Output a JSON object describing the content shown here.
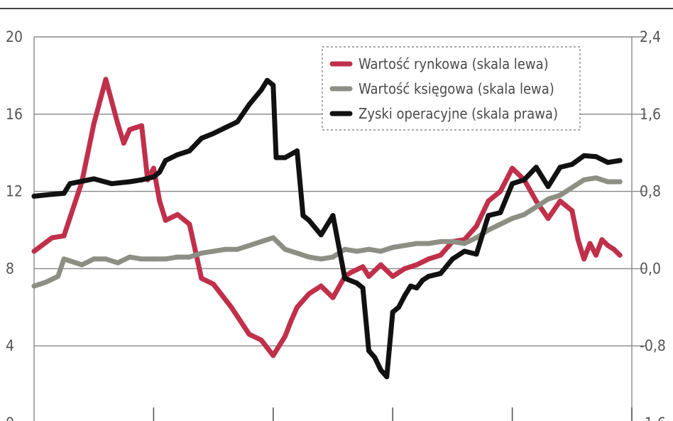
{
  "chart_data": {
    "type": "line",
    "title": "",
    "xlabel": "",
    "ylabel_left": "",
    "ylabel_right": "",
    "y_left": {
      "ticks": [
        "20",
        "16",
        "12",
        "8",
        "4",
        "0"
      ],
      "values": [
        20,
        16,
        12,
        8,
        4,
        0
      ],
      "lim": [
        0,
        20
      ]
    },
    "y_right": {
      "ticks": [
        "2,4",
        "1,6",
        "0,8",
        "0,0",
        "-0,8",
        "-1,6"
      ],
      "values": [
        2.4,
        1.6,
        0.8,
        0.0,
        -0.8,
        -1.6
      ],
      "lim": [
        -1.6,
        2.4
      ]
    },
    "x_lim": [
      0,
      100
    ],
    "x_ticks": [
      20,
      40,
      60,
      80,
      100
    ],
    "grid": "horizontal",
    "legend_position": "top-right",
    "colors": {
      "market": "#c0304a",
      "book": "#8e8f84",
      "profits": "#111111",
      "grid": "#888888"
    },
    "series": [
      {
        "name": "Wartość rynkowa (skala lewa)",
        "axis": "left",
        "color": "#c0304a",
        "x": [
          0,
          3,
          5,
          8,
          10,
          12,
          14,
          15,
          16,
          17,
          18,
          19,
          20,
          21,
          22,
          24,
          26,
          28,
          30,
          33,
          36,
          38,
          40,
          42,
          43,
          44,
          46,
          48,
          50,
          52,
          53,
          55,
          56,
          58,
          60,
          62,
          64,
          66,
          68,
          70,
          72,
          74,
          76,
          78,
          80,
          82,
          84,
          86,
          88,
          90,
          91,
          92,
          93,
          94,
          95,
          96,
          97,
          98
        ],
        "y": [
          8.9,
          9.6,
          9.7,
          12.5,
          15.5,
          17.8,
          15.5,
          14.5,
          15.2,
          15.3,
          15.4,
          12.6,
          13.2,
          11.5,
          10.5,
          10.8,
          10.3,
          7.5,
          7.2,
          6.0,
          4.6,
          4.3,
          3.5,
          4.5,
          5.3,
          6.0,
          6.7,
          7.1,
          6.5,
          7.6,
          7.8,
          8.1,
          7.6,
          8.2,
          7.6,
          8.0,
          8.2,
          8.5,
          8.7,
          9.4,
          9.5,
          10.2,
          11.5,
          12.0,
          13.2,
          12.6,
          11.5,
          10.6,
          11.5,
          11.0,
          9.5,
          8.5,
          9.3,
          8.7,
          9.5,
          9.2,
          9.0,
          8.7
        ]
      },
      {
        "name": "Wartość księgowa (skala lewa)",
        "axis": "left",
        "color": "#8e8f84",
        "x": [
          0,
          2,
          4,
          5,
          6,
          8,
          10,
          12,
          14,
          16,
          18,
          20,
          22,
          24,
          26,
          28,
          30,
          32,
          34,
          36,
          38,
          40,
          42,
          44,
          46,
          48,
          50,
          52,
          54,
          56,
          58,
          60,
          62,
          64,
          66,
          68,
          70,
          72,
          74,
          76,
          78,
          80,
          82,
          84,
          86,
          88,
          90,
          92,
          94,
          96,
          98
        ],
        "y": [
          7.1,
          7.3,
          7.6,
          8.5,
          8.4,
          8.2,
          8.5,
          8.5,
          8.3,
          8.6,
          8.5,
          8.5,
          8.5,
          8.6,
          8.6,
          8.8,
          8.9,
          9.0,
          9.0,
          9.2,
          9.4,
          9.6,
          9.0,
          8.8,
          8.6,
          8.5,
          8.6,
          9.0,
          8.9,
          9.0,
          8.9,
          9.1,
          9.2,
          9.3,
          9.3,
          9.4,
          9.4,
          9.3,
          9.6,
          10.0,
          10.3,
          10.6,
          10.8,
          11.2,
          11.6,
          11.8,
          12.2,
          12.6,
          12.7,
          12.5,
          12.5
        ]
      },
      {
        "name": "Zyski operacyjne (skala prawa)",
        "axis": "right",
        "color": "#111111",
        "x": [
          0,
          3,
          5,
          6,
          10,
          13,
          16,
          18,
          20,
          21,
          22,
          24,
          26,
          28,
          30,
          32,
          34,
          36,
          38,
          39,
          40,
          40.5,
          42,
          44,
          45,
          46,
          48,
          50,
          52,
          54,
          55,
          56,
          57,
          58,
          59,
          60,
          61,
          62,
          63,
          64,
          65,
          66,
          68,
          70,
          72,
          74,
          76,
          78,
          80,
          82,
          84,
          86,
          88,
          90,
          92,
          94,
          96,
          98
        ],
        "y": [
          0.75,
          0.77,
          0.78,
          0.88,
          0.93,
          0.88,
          0.9,
          0.92,
          0.95,
          1.0,
          1.12,
          1.18,
          1.22,
          1.35,
          1.4,
          1.46,
          1.52,
          1.7,
          1.85,
          1.95,
          1.9,
          1.15,
          1.15,
          1.22,
          0.55,
          0.5,
          0.35,
          0.55,
          -0.1,
          -0.15,
          -0.2,
          -0.85,
          -0.92,
          -1.05,
          -1.12,
          -0.45,
          -0.4,
          -0.28,
          -0.18,
          -0.2,
          -0.12,
          -0.08,
          -0.05,
          0.1,
          0.18,
          0.15,
          0.55,
          0.58,
          0.88,
          0.92,
          1.05,
          0.85,
          1.05,
          1.08,
          1.17,
          1.16,
          1.1,
          1.12
        ]
      }
    ]
  }
}
